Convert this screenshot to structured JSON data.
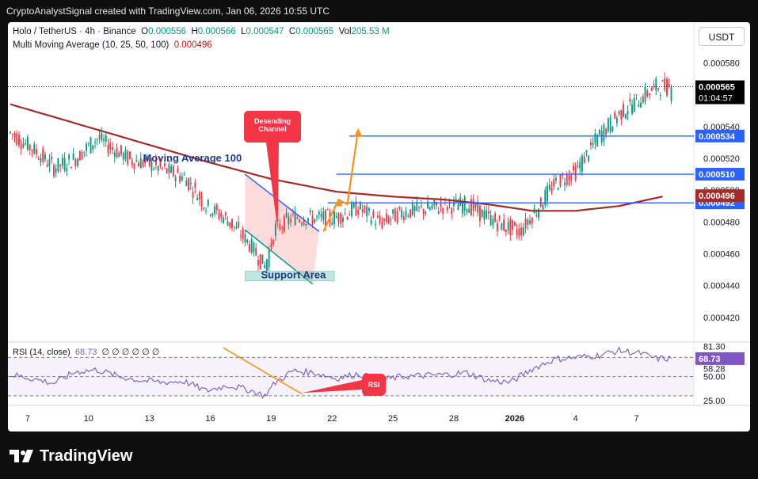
{
  "header": {
    "attribution": "CryptoAnalystSignal created with TradingView.com, Jan 06, 2026 10:55 UTC"
  },
  "legend": {
    "symbol": "Holo / TetherUS · 4h · Binance",
    "o_label": "O",
    "o": "0.000556",
    "h_label": "H",
    "h": "0.000566",
    "l_label": "L",
    "l": "0.000547",
    "c_label": "C",
    "c": "0.000565",
    "vol_label": "Vol",
    "vol": "205.53 M",
    "ma_label": "Multi Moving Average (10, 25, 50, 100)",
    "ma_value": "0.000496"
  },
  "currency_button": "USDT",
  "footer": {
    "brand": "TradingView"
  },
  "colors": {
    "up": "#089981",
    "down": "#f23645",
    "ma100": "#a52a2a",
    "level": "#2962ff",
    "rsi": "#7e57c2",
    "arrow": "#f7931a",
    "annotation_red": "#f23645"
  },
  "chart_data": [
    {
      "type": "candlestick",
      "title": "Holo / TetherUS · 4h · Binance",
      "y_ticks": [
        "0.000580",
        "0.000540",
        "0.000520",
        "0.000500",
        "0.000480",
        "0.000460",
        "0.000440",
        "0.000420"
      ],
      "y_tick_values": [
        0.00058,
        0.00054,
        0.00052,
        0.0005,
        0.00048,
        0.00046,
        0.00044,
        0.00042
      ],
      "ylim": [
        0.0004045,
        0.0006036
      ],
      "x_ticks": [
        "7",
        "10",
        "13",
        "16",
        "19",
        "22",
        "25",
        "28",
        "2026",
        "4",
        "7"
      ],
      "x_tick_index": [
        8,
        36,
        64,
        92,
        120,
        148,
        176,
        204,
        232,
        260,
        288
      ],
      "candle_count": 305,
      "current_price": {
        "label": "0.000565",
        "value": 0.000565,
        "countdown": "01:04:57"
      },
      "levels": [
        {
          "label": "0.000534",
          "value": 0.000534,
          "x_start_index": 156
        },
        {
          "label": "0.000510",
          "value": 0.00051,
          "x_start_index": 150
        },
        {
          "label": "0.000492",
          "value": 0.000492,
          "x_start_index": 146
        }
      ],
      "ma_badge": {
        "label": "0.000496",
        "value": 0.000496
      },
      "ma100_text": "Moving Average 100",
      "ma100_path": [
        [
          0,
          0.000554
        ],
        [
          30,
          0.000542
        ],
        [
          60,
          0.00053
        ],
        [
          90,
          0.000518
        ],
        [
          120,
          0.000507
        ],
        [
          150,
          0.000499
        ],
        [
          175,
          0.000496
        ],
        [
          200,
          0.000494
        ],
        [
          220,
          0.000491
        ],
        [
          240,
          0.000487
        ],
        [
          260,
          0.000487
        ],
        [
          280,
          0.00049
        ],
        [
          300,
          0.000496
        ]
      ],
      "price_path": [
        [
          0,
          0.000536
        ],
        [
          10,
          0.000526
        ],
        [
          20,
          0.000514
        ],
        [
          30,
          0.00052
        ],
        [
          40,
          0.000533
        ],
        [
          48,
          0.000525
        ],
        [
          55,
          0.000519
        ],
        [
          62,
          0.000517
        ],
        [
          70,
          0.000513
        ],
        [
          80,
          0.000508
        ],
        [
          90,
          0.00049
        ],
        [
          100,
          0.000481
        ],
        [
          110,
          0.000466
        ],
        [
          117,
          0.000452
        ],
        [
          122,
          0.000476
        ],
        [
          130,
          0.000483
        ],
        [
          140,
          0.000482
        ],
        [
          150,
          0.000483
        ],
        [
          160,
          0.000489
        ],
        [
          170,
          0.000479
        ],
        [
          180,
          0.000486
        ],
        [
          190,
          0.000488
        ],
        [
          200,
          0.00049
        ],
        [
          210,
          0.000491
        ],
        [
          218,
          0.000484
        ],
        [
          226,
          0.000478
        ],
        [
          234,
          0.000474
        ],
        [
          242,
          0.000488
        ],
        [
          250,
          0.000504
        ],
        [
          260,
          0.000512
        ],
        [
          270,
          0.000533
        ],
        [
          280,
          0.000548
        ],
        [
          288,
          0.000556
        ],
        [
          297,
          0.000565
        ]
      ],
      "descending_channel": {
        "upper": [
          [
            108,
            0.00051
          ],
          [
            142,
            0.000474
          ]
        ],
        "lower": [
          [
            108,
            0.000475
          ],
          [
            139,
            0.000441
          ]
        ]
      },
      "descending_channel_label": "Desending\nChannel",
      "support_area": {
        "label": "Support Area",
        "x_start": 108,
        "x_end": 149,
        "y_top": 0.000449,
        "y_bottom": 0.000443
      },
      "projection_arrow": [
        [
          144,
          0.000474
        ],
        [
          151,
          0.000494
        ],
        [
          155,
          0.000491
        ],
        [
          160,
          0.000538
        ]
      ]
    },
    {
      "type": "line",
      "title": "RSI (14, close)",
      "rsi_value_label": "68.73",
      "placeholders": "∅ ∅ ∅ ∅ ∅ ∅",
      "y_ticks": [
        "81.30",
        "58.28",
        "50.00",
        "25.00"
      ],
      "ylim": [
        20,
        86
      ],
      "upper_band": 70,
      "lower_band": 30,
      "mid": 50,
      "current": {
        "label": "68.73",
        "value": 68.73
      },
      "rsi_path": [
        [
          0,
          52
        ],
        [
          10,
          48
        ],
        [
          20,
          43
        ],
        [
          30,
          55
        ],
        [
          40,
          57
        ],
        [
          50,
          50
        ],
        [
          60,
          46
        ],
        [
          70,
          44
        ],
        [
          80,
          45
        ],
        [
          90,
          35
        ],
        [
          100,
          41
        ],
        [
          110,
          36
        ],
        [
          117,
          30
        ],
        [
          122,
          44
        ],
        [
          130,
          56
        ],
        [
          140,
          54
        ],
        [
          150,
          48
        ],
        [
          160,
          53
        ],
        [
          170,
          46
        ],
        [
          180,
          50
        ],
        [
          190,
          51
        ],
        [
          200,
          52
        ],
        [
          210,
          54
        ],
        [
          220,
          46
        ],
        [
          230,
          44
        ],
        [
          240,
          58
        ],
        [
          250,
          68
        ],
        [
          260,
          70
        ],
        [
          270,
          72
        ],
        [
          280,
          77
        ],
        [
          290,
          74
        ],
        [
          297,
          68.73
        ]
      ],
      "divergence_line": [
        [
          98,
          80
        ],
        [
          134,
          32
        ]
      ],
      "rsi_callout": "RSI"
    }
  ]
}
